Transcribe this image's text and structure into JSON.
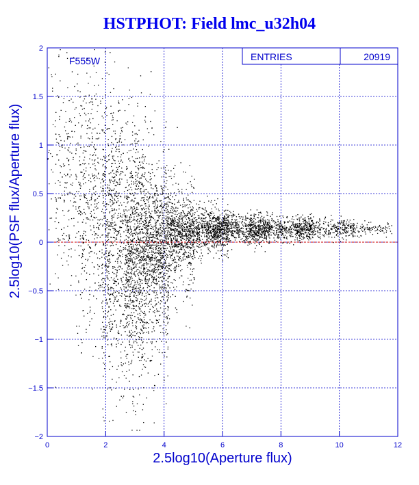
{
  "chart_data": {
    "type": "scatter",
    "title": "HSTPHOT: Field lmc_u32h04",
    "xlabel": "2.5log10(Aperture flux)",
    "ylabel": "2.5log10(PSF flux/Aperture flux)",
    "xlim": [
      0,
      12
    ],
    "ylim": [
      -2,
      2
    ],
    "xticks": [
      "0",
      "2",
      "4",
      "6",
      "8",
      "10",
      "12"
    ],
    "yticks": [
      "-2",
      "-1.5",
      "-1",
      "-0.5",
      "0",
      "0.5",
      "1",
      "1.5",
      "2"
    ],
    "grid": true,
    "annotation": "F555W",
    "stats": {
      "label": "ENTRIES",
      "value": "20919"
    },
    "reference_line": {
      "y": 0,
      "color": "#cc0000"
    },
    "series": [
      {
        "marker_color": "#000000",
        "density_profile": [
          {
            "x": 0.3,
            "y_center": 0.9,
            "y_spread": 0.55,
            "relative_density": 0.02
          },
          {
            "x": 1.0,
            "y_center": 0.6,
            "y_spread": 0.6,
            "relative_density": 0.04
          },
          {
            "x": 1.8,
            "y_center": 0.3,
            "y_spread": 0.75,
            "relative_density": 0.08
          },
          {
            "x": 2.6,
            "y_center": -0.1,
            "y_spread": 0.7,
            "relative_density": 0.14
          },
          {
            "x": 3.4,
            "y_center": -0.2,
            "y_spread": 0.55,
            "relative_density": 0.18
          },
          {
            "x": 4.2,
            "y_center": 0.05,
            "y_spread": 0.3,
            "relative_density": 0.14
          },
          {
            "x": 5.2,
            "y_center": 0.12,
            "y_spread": 0.12,
            "relative_density": 0.13
          },
          {
            "x": 6.5,
            "y_center": 0.14,
            "y_spread": 0.08,
            "relative_density": 0.11
          },
          {
            "x": 8.0,
            "y_center": 0.14,
            "y_spread": 0.06,
            "relative_density": 0.09
          },
          {
            "x": 9.5,
            "y_center": 0.14,
            "y_spread": 0.05,
            "relative_density": 0.05
          },
          {
            "x": 10.8,
            "y_center": 0.14,
            "y_spread": 0.04,
            "relative_density": 0.02
          }
        ]
      }
    ]
  }
}
